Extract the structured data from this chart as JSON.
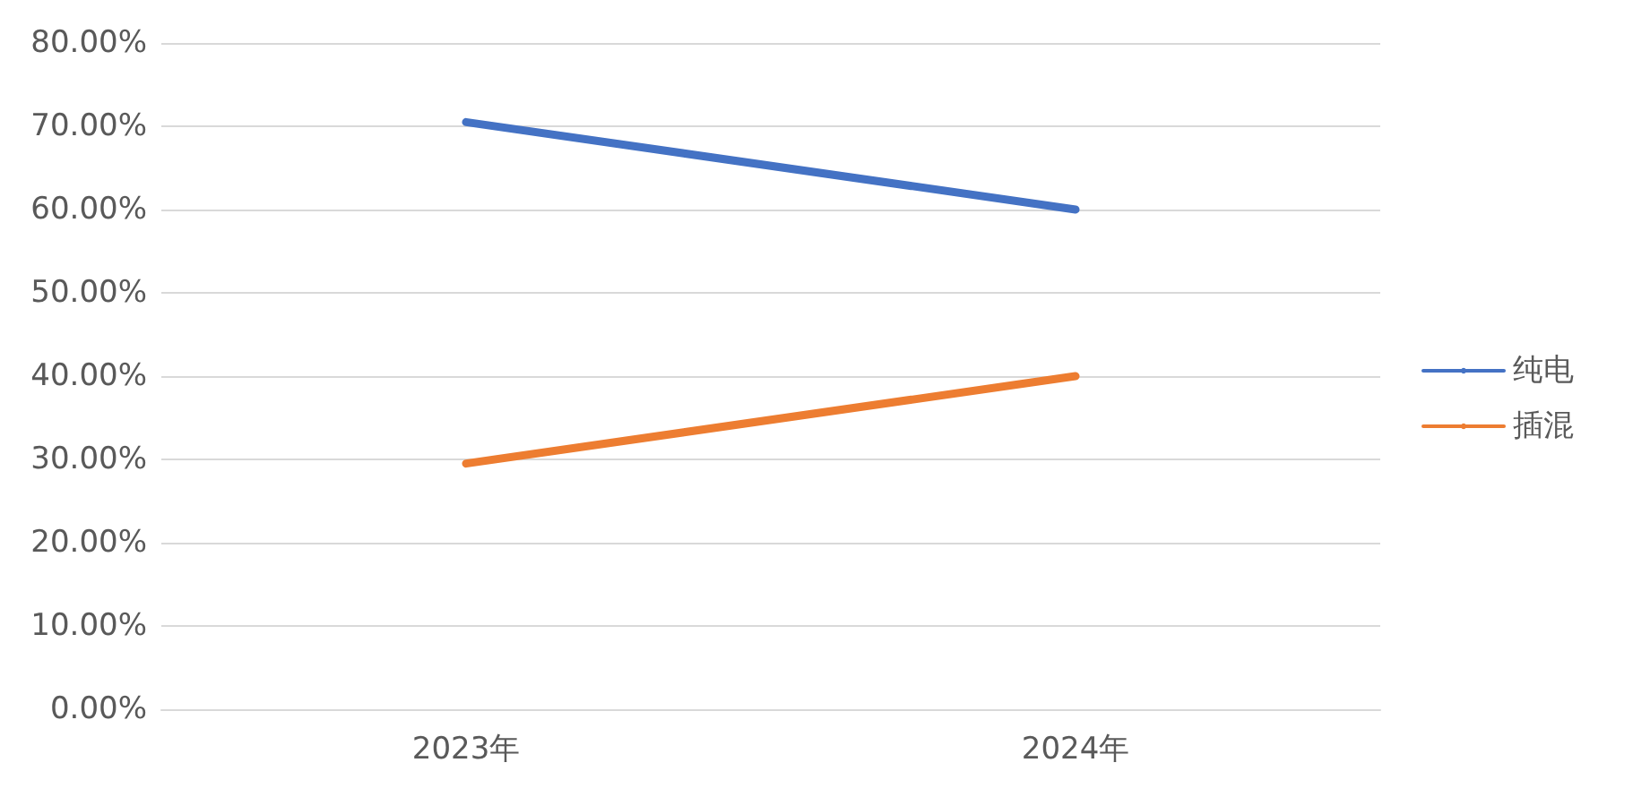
{
  "chart_data": {
    "type": "line",
    "categories": [
      "2023年",
      "2024年"
    ],
    "series": [
      {
        "name": "纯电",
        "color": "#4472c4",
        "values": [
          70.5,
          60
        ]
      },
      {
        "name": "插混",
        "color": "#ed7d31",
        "values": [
          29.5,
          40
        ]
      }
    ],
    "ylim": [
      0,
      80
    ],
    "yticks": [
      {
        "value": 0,
        "label": "0.00%"
      },
      {
        "value": 10,
        "label": "10.00%"
      },
      {
        "value": 20,
        "label": "20.00%"
      },
      {
        "value": 30,
        "label": "30.00%"
      },
      {
        "value": 40,
        "label": "40.00%"
      },
      {
        "value": 50,
        "label": "50.00%"
      },
      {
        "value": 60,
        "label": "60.00%"
      },
      {
        "value": 70,
        "label": "70.00%"
      },
      {
        "value": 80,
        "label": "80.00%"
      }
    ],
    "grid": "y",
    "legend": "right",
    "marker": "none",
    "line_style": "solid"
  }
}
